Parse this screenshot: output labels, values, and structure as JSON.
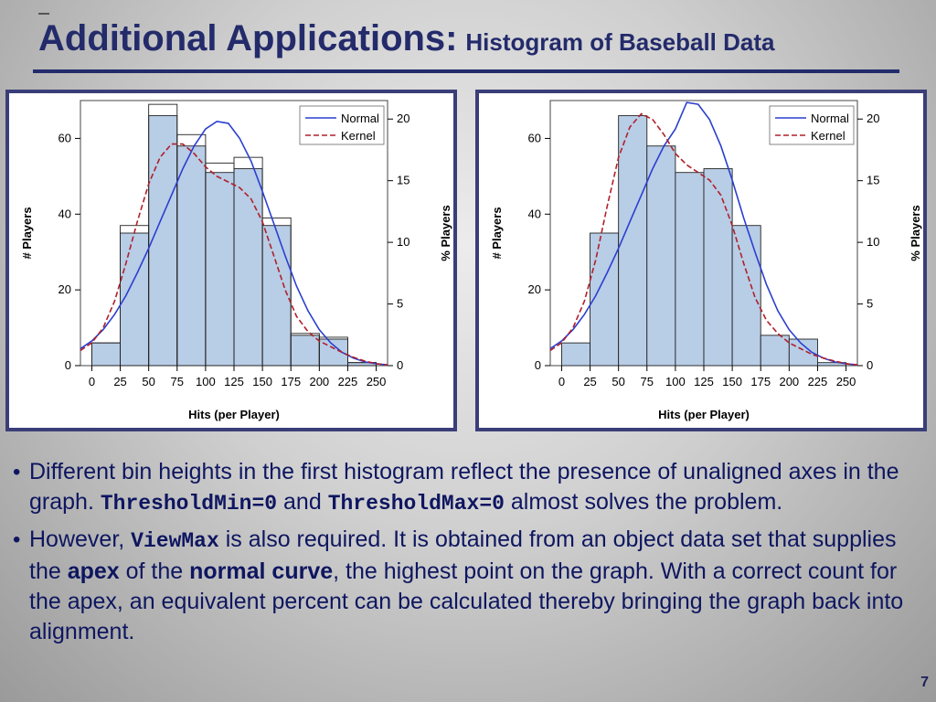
{
  "slide": {
    "title_main": "Additional Applications:",
    "title_sub": "Histogram of Baseball Data",
    "page_number": "7"
  },
  "bullets": [
    {
      "parts": [
        {
          "text": "Different bin heights in the first histogram reflect the presence of unaligned axes in the graph. ",
          "style": "normal"
        },
        {
          "text": "ThresholdMin=0",
          "style": "mono"
        },
        {
          "text": " and ",
          "style": "normal"
        },
        {
          "text": "ThresholdMax=0",
          "style": "mono"
        },
        {
          "text": " almost solves the problem.",
          "style": "normal"
        }
      ]
    },
    {
      "parts": [
        {
          "text": "However, ",
          "style": "normal"
        },
        {
          "text": "ViewMax",
          "style": "mono"
        },
        {
          "text": " is also required. It is obtained from an object data set that supplies the ",
          "style": "normal"
        },
        {
          "text": "apex",
          "style": "bold"
        },
        {
          "text": " of the ",
          "style": "normal"
        },
        {
          "text": "normal curve",
          "style": "bold"
        },
        {
          "text": ", the highest point on the graph. With a correct count for the apex, an equivalent percent can be calculated thereby bringing the graph back into alignment.",
          "style": "normal"
        }
      ]
    }
  ],
  "colors": {
    "title": "#232b6b",
    "bar_fill": "#b8cde6",
    "bar_stroke": "#222222",
    "normal_curve": "#2b3fd0",
    "kernel_curve": "#b0202a"
  },
  "chart_data": [
    {
      "type": "bar",
      "xlabel": "Hits (per Player)",
      "ylabel": "# Players",
      "y2label": "% Players",
      "xlim": [
        -10,
        260
      ],
      "ylim": [
        0,
        70
      ],
      "y2lim": [
        0,
        21.5
      ],
      "xticks": [
        0,
        25,
        50,
        75,
        100,
        125,
        150,
        175,
        200,
        225,
        250
      ],
      "yticks": [
        0,
        20,
        40,
        60
      ],
      "y2ticks": [
        0,
        5,
        10,
        15,
        20
      ],
      "bin_width": 25,
      "bins": [
        0,
        25,
        50,
        75,
        100,
        125,
        150,
        175,
        200,
        225
      ],
      "count_bars": [
        6,
        37,
        69,
        61,
        53.5,
        55,
        39,
        8.5,
        7.5,
        0.8
      ],
      "percent_bars": [
        6,
        35,
        66,
        58,
        51,
        52,
        37,
        8,
        7,
        0.8
      ],
      "normal_curve": {
        "x": [
          -10,
          0,
          10,
          20,
          30,
          40,
          50,
          60,
          70,
          80,
          90,
          100,
          110,
          120,
          130,
          140,
          150,
          160,
          170,
          180,
          190,
          200,
          210,
          220,
          230,
          240,
          250,
          260
        ],
        "y": [
          4.5,
          6.5,
          9.5,
          13.5,
          18.5,
          24.5,
          31,
          38,
          45,
          52,
          58,
          62.5,
          64.5,
          64,
          60,
          54,
          46,
          37.5,
          29,
          21,
          14.5,
          9.5,
          6,
          3.5,
          2,
          1,
          0.5,
          0.2
        ]
      },
      "kernel_curve": {
        "x": [
          -10,
          0,
          10,
          20,
          30,
          40,
          50,
          60,
          70,
          80,
          90,
          100,
          110,
          120,
          130,
          140,
          150,
          160,
          170,
          180,
          190,
          200,
          210,
          220,
          230,
          240,
          250,
          260
        ],
        "y": [
          4,
          6,
          10,
          17,
          27,
          38,
          48,
          55,
          58.5,
          58.5,
          56,
          52.5,
          50,
          48.5,
          47,
          44,
          38,
          29,
          20,
          13,
          9,
          6.5,
          5,
          3.5,
          2.2,
          1.2,
          0.5,
          0.2
        ]
      },
      "legend": [
        {
          "label": "Normal",
          "style": "solid"
        },
        {
          "label": "Kernel",
          "style": "dashed"
        }
      ],
      "legend_position": "top-right"
    },
    {
      "type": "bar",
      "xlabel": "Hits (per Player)",
      "ylabel": "# Players",
      "y2label": "% Players",
      "xlim": [
        -10,
        260
      ],
      "ylim": [
        0,
        70
      ],
      "y2lim": [
        0,
        21.5
      ],
      "xticks": [
        0,
        25,
        50,
        75,
        100,
        125,
        150,
        175,
        200,
        225,
        250
      ],
      "yticks": [
        0,
        20,
        40,
        60
      ],
      "y2ticks": [
        0,
        5,
        10,
        15,
        20
      ],
      "bin_width": 25,
      "bins": [
        0,
        25,
        50,
        75,
        100,
        125,
        150,
        175,
        200,
        225
      ],
      "count_bars": [
        6,
        35,
        66,
        58,
        51,
        52,
        37,
        8,
        7,
        0.8
      ],
      "percent_bars": [],
      "normal_curve": {
        "x": [
          -10,
          0,
          10,
          20,
          30,
          40,
          50,
          60,
          70,
          80,
          90,
          100,
          110,
          120,
          130,
          140,
          150,
          160,
          170,
          180,
          190,
          200,
          210,
          220,
          230,
          240,
          250,
          260
        ],
        "y": [
          4.5,
          6.5,
          9.5,
          13.5,
          18.5,
          24.5,
          31,
          38,
          45,
          52,
          58,
          62.5,
          69.5,
          69,
          65,
          58,
          49,
          39,
          30,
          21.5,
          14.5,
          9.5,
          6,
          3.5,
          2,
          1,
          0.5,
          0.2
        ]
      },
      "kernel_curve": {
        "x": [
          -10,
          0,
          10,
          20,
          30,
          40,
          50,
          60,
          70,
          80,
          90,
          100,
          110,
          120,
          130,
          140,
          150,
          160,
          170,
          180,
          190,
          200,
          210,
          220,
          230,
          240,
          250,
          260
        ],
        "y": [
          4,
          6,
          10,
          17,
          28,
          42,
          55,
          63,
          66.5,
          65,
          61,
          56,
          53,
          51,
          49,
          45,
          37,
          27,
          18,
          12,
          8.5,
          6,
          4.5,
          3,
          2,
          1.2,
          0.5,
          0.2
        ]
      },
      "legend": [
        {
          "label": "Normal",
          "style": "solid"
        },
        {
          "label": "Kernel",
          "style": "dashed"
        }
      ],
      "legend_position": "top-right"
    }
  ]
}
